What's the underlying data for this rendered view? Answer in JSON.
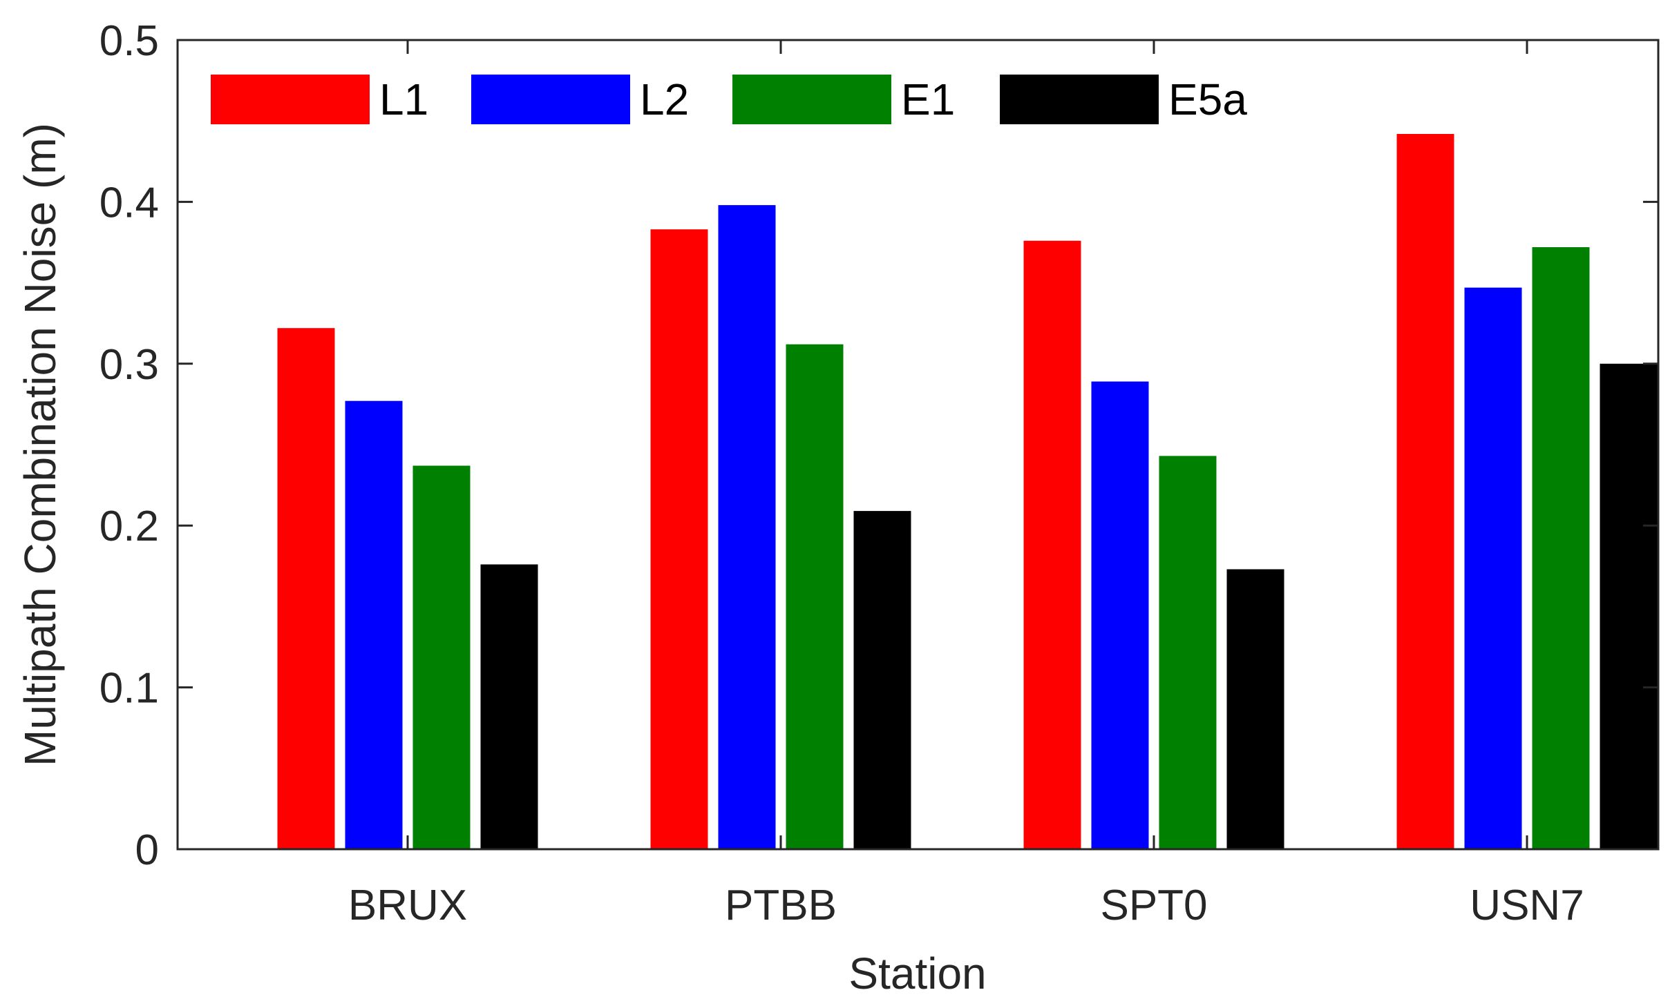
{
  "chart_data": {
    "type": "bar",
    "categories": [
      "BRUX",
      "PTBB",
      "SPT0",
      "USN7"
    ],
    "series": [
      {
        "name": "L1",
        "color": "#ff0000",
        "values": [
          0.322,
          0.383,
          0.376,
          0.442
        ]
      },
      {
        "name": "L2",
        "color": "#0000ff",
        "values": [
          0.277,
          0.398,
          0.289,
          0.347
        ]
      },
      {
        "name": "E1",
        "color": "#008000",
        "values": [
          0.237,
          0.312,
          0.243,
          0.372
        ]
      },
      {
        "name": "E5a",
        "color": "#000000",
        "values": [
          0.176,
          0.209,
          0.173,
          0.3
        ]
      }
    ],
    "xlabel": "Station",
    "ylabel": "Multipath Combination Noise (m)",
    "ylim": [
      0,
      0.5
    ],
    "yticks": [
      "0",
      "0.1",
      "0.2",
      "0.3",
      "0.4",
      "0.5"
    ],
    "grid": false,
    "legend_position": "top-left, horizontal"
  }
}
